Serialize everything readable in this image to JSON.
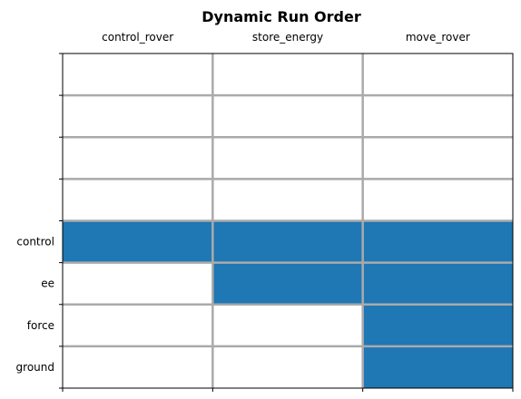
{
  "chart_data": {
    "type": "heatmap",
    "title": "Dynamic Run Order",
    "columns": [
      "control_rover",
      "store_energy",
      "move_rover"
    ],
    "rows": [
      "",
      "",
      "",
      "",
      "control",
      "ee",
      "force",
      "ground"
    ],
    "cells": [
      [
        0,
        0,
        0
      ],
      [
        0,
        0,
        0
      ],
      [
        0,
        0,
        0
      ],
      [
        0,
        0,
        0
      ],
      [
        1,
        1,
        1
      ],
      [
        0,
        1,
        1
      ],
      [
        0,
        0,
        1
      ],
      [
        0,
        0,
        1
      ]
    ],
    "xaxis_position": "top",
    "grid": true,
    "colors": {
      "filled": "#1f77b4",
      "empty": "#ffffff",
      "grid": "#aaaaaa",
      "axis": "#000000"
    }
  }
}
